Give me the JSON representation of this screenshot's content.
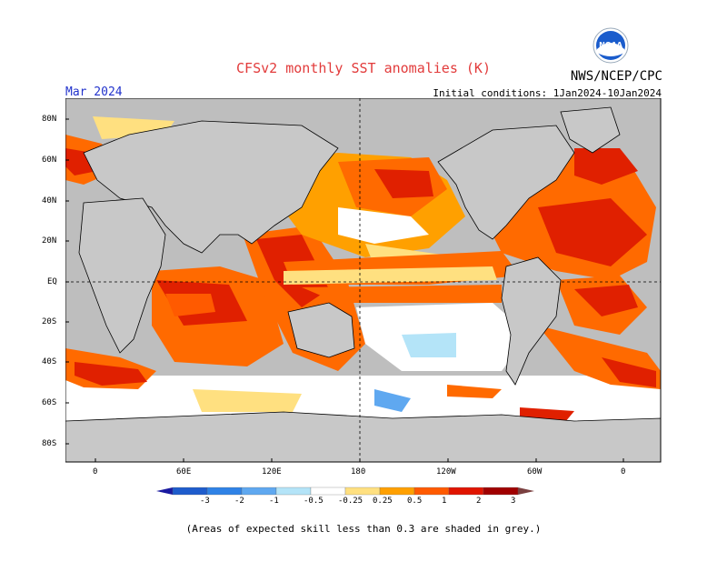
{
  "header": {
    "title": "CFSv2 monthly SST anomalies (K)",
    "agency": "NWS/NCEP/CPC",
    "period": "Mar 2024",
    "initial_conditions": "Initial conditions: 1Jan2024-10Jan2024"
  },
  "logo": {
    "icon": "noaa-logo-icon",
    "text": "NOAA"
  },
  "map": {
    "lat_labels": [
      "80N",
      "60N",
      "40N",
      "20N",
      "EQ",
      "20S",
      "40S",
      "60S",
      "80S"
    ],
    "lon_labels": [
      "0",
      "60E",
      "120E",
      "180",
      "120W",
      "60W",
      "0"
    ],
    "no_skill_color": "#bebebe",
    "land_color": "#c8c8c8"
  },
  "colorbar": {
    "labels": [
      "-3",
      "-2",
      "-1",
      "-0.5",
      "-0.25",
      "0.25",
      "0.5",
      "1",
      "2",
      "3"
    ],
    "colors": [
      "#1a1aa0",
      "#1e5ccc",
      "#2f82e6",
      "#5fa8f0",
      "#b4e4f8",
      "#ffffff",
      "#ffe080",
      "#ffa000",
      "#ff5a00",
      "#e01400",
      "#a00000",
      "#7a4040"
    ]
  },
  "footnote": "(Areas of expected skill less than 0.3 are shaded in grey.)"
}
